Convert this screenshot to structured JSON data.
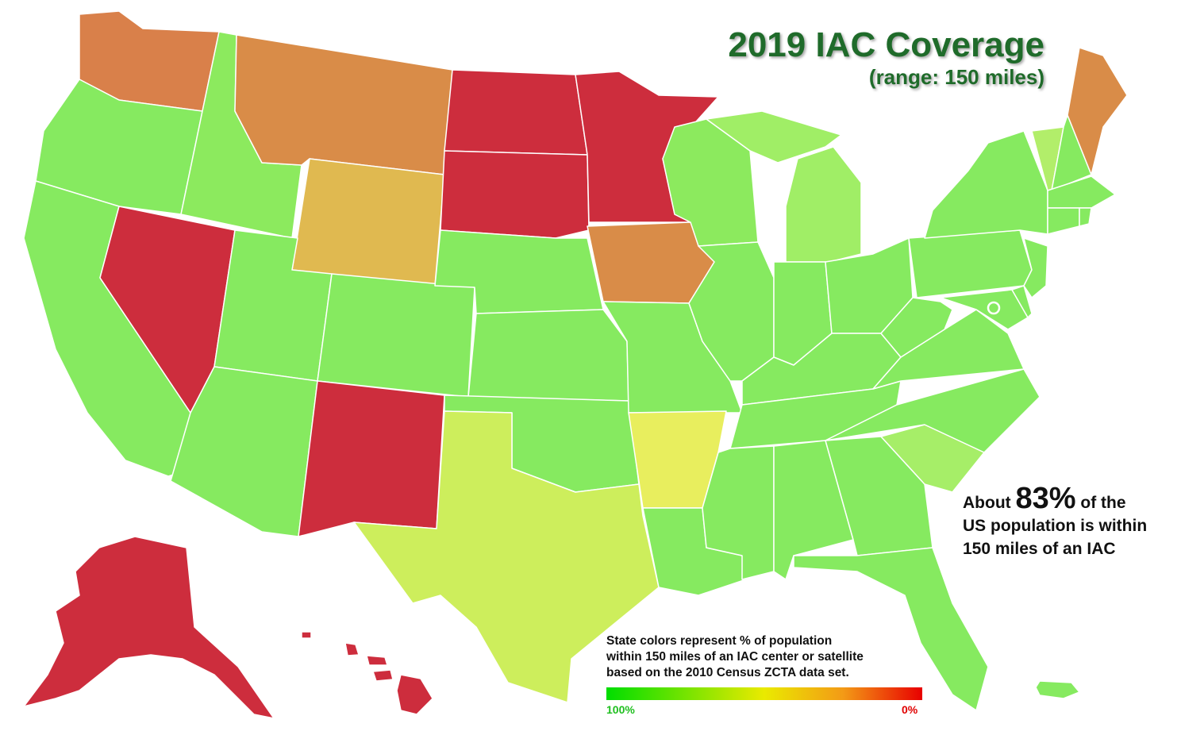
{
  "title": "2019 IAC Coverage",
  "subtitle": "(range: 150 miles)",
  "callout": {
    "prefix": "About ",
    "percent": "83%",
    "suffix": " of the",
    "line2": "US population is within",
    "line3": "150 miles of an IAC"
  },
  "legend": {
    "line1": "State colors represent % of population",
    "line2": "within 150 miles of an IAC center or satellite",
    "line3": "based on the 2010 Census ZCTA data set.",
    "min_label": "100%",
    "max_label": "0%"
  },
  "colors": {
    "high_coverage": "#86ea60",
    "light_green": "#a6ee68",
    "yellow_green": "#cdee5c",
    "yellow": "#e8ee5e",
    "mustard": "#e0b950",
    "orange": "#d98c48",
    "red": "#cd2d3d"
  },
  "states": [
    {
      "name": "Washington",
      "color": "#d9804a"
    },
    {
      "name": "Oregon",
      "color": "#86ea60"
    },
    {
      "name": "California",
      "color": "#86ea60"
    },
    {
      "name": "Nevada",
      "color": "#cd2d3d"
    },
    {
      "name": "Idaho",
      "color": "#8cea5e"
    },
    {
      "name": "Montana",
      "color": "#d98c48"
    },
    {
      "name": "Wyoming",
      "color": "#e0b950"
    },
    {
      "name": "Utah",
      "color": "#86ea60"
    },
    {
      "name": "Arizona",
      "color": "#86ea60"
    },
    {
      "name": "Colorado",
      "color": "#86ea60"
    },
    {
      "name": "New Mexico",
      "color": "#cd2d3d"
    },
    {
      "name": "North Dakota",
      "color": "#cd2d3d"
    },
    {
      "name": "South Dakota",
      "color": "#cd2d3d"
    },
    {
      "name": "Nebraska",
      "color": "#86ea60"
    },
    {
      "name": "Kansas",
      "color": "#86ea60"
    },
    {
      "name": "Oklahoma",
      "color": "#86ea60"
    },
    {
      "name": "Texas",
      "color": "#cdee5c"
    },
    {
      "name": "Minnesota",
      "color": "#cd2d3d"
    },
    {
      "name": "Iowa",
      "color": "#d98c48"
    },
    {
      "name": "Missouri",
      "color": "#86ea60"
    },
    {
      "name": "Arkansas",
      "color": "#e8ee5e"
    },
    {
      "name": "Louisiana",
      "color": "#86ea60"
    },
    {
      "name": "Wisconsin",
      "color": "#8cea5e"
    },
    {
      "name": "Illinois",
      "color": "#86ea60"
    },
    {
      "name": "Michigan",
      "color": "#a0ee66"
    },
    {
      "name": "Indiana",
      "color": "#86ea60"
    },
    {
      "name": "Ohio",
      "color": "#86ea60"
    },
    {
      "name": "Kentucky",
      "color": "#86ea60"
    },
    {
      "name": "Tennessee",
      "color": "#86ea60"
    },
    {
      "name": "Mississippi",
      "color": "#86ea60"
    },
    {
      "name": "Alabama",
      "color": "#86ea60"
    },
    {
      "name": "Georgia",
      "color": "#86ea60"
    },
    {
      "name": "Florida",
      "color": "#86ea60"
    },
    {
      "name": "South Carolina",
      "color": "#a6ee68"
    },
    {
      "name": "North Carolina",
      "color": "#86ea60"
    },
    {
      "name": "Virginia",
      "color": "#86ea60"
    },
    {
      "name": "West Virginia",
      "color": "#86ea60"
    },
    {
      "name": "Pennsylvania",
      "color": "#86ea60"
    },
    {
      "name": "New York",
      "color": "#86ea60"
    },
    {
      "name": "New Jersey",
      "color": "#86ea60"
    },
    {
      "name": "Maryland",
      "color": "#86ea60"
    },
    {
      "name": "Delaware",
      "color": "#86ea60"
    },
    {
      "name": "Vermont",
      "color": "#b2ee6a"
    },
    {
      "name": "New Hampshire",
      "color": "#86ea60"
    },
    {
      "name": "Maine",
      "color": "#d98c48"
    },
    {
      "name": "Massachusetts",
      "color": "#86ea60"
    },
    {
      "name": "Connecticut",
      "color": "#86ea60"
    },
    {
      "name": "Rhode Island",
      "color": "#86ea60"
    },
    {
      "name": "Alaska",
      "color": "#cd2d3d"
    },
    {
      "name": "Hawaii",
      "color": "#cd2d3d"
    },
    {
      "name": "Puerto Rico",
      "color": "#86ea60"
    }
  ]
}
